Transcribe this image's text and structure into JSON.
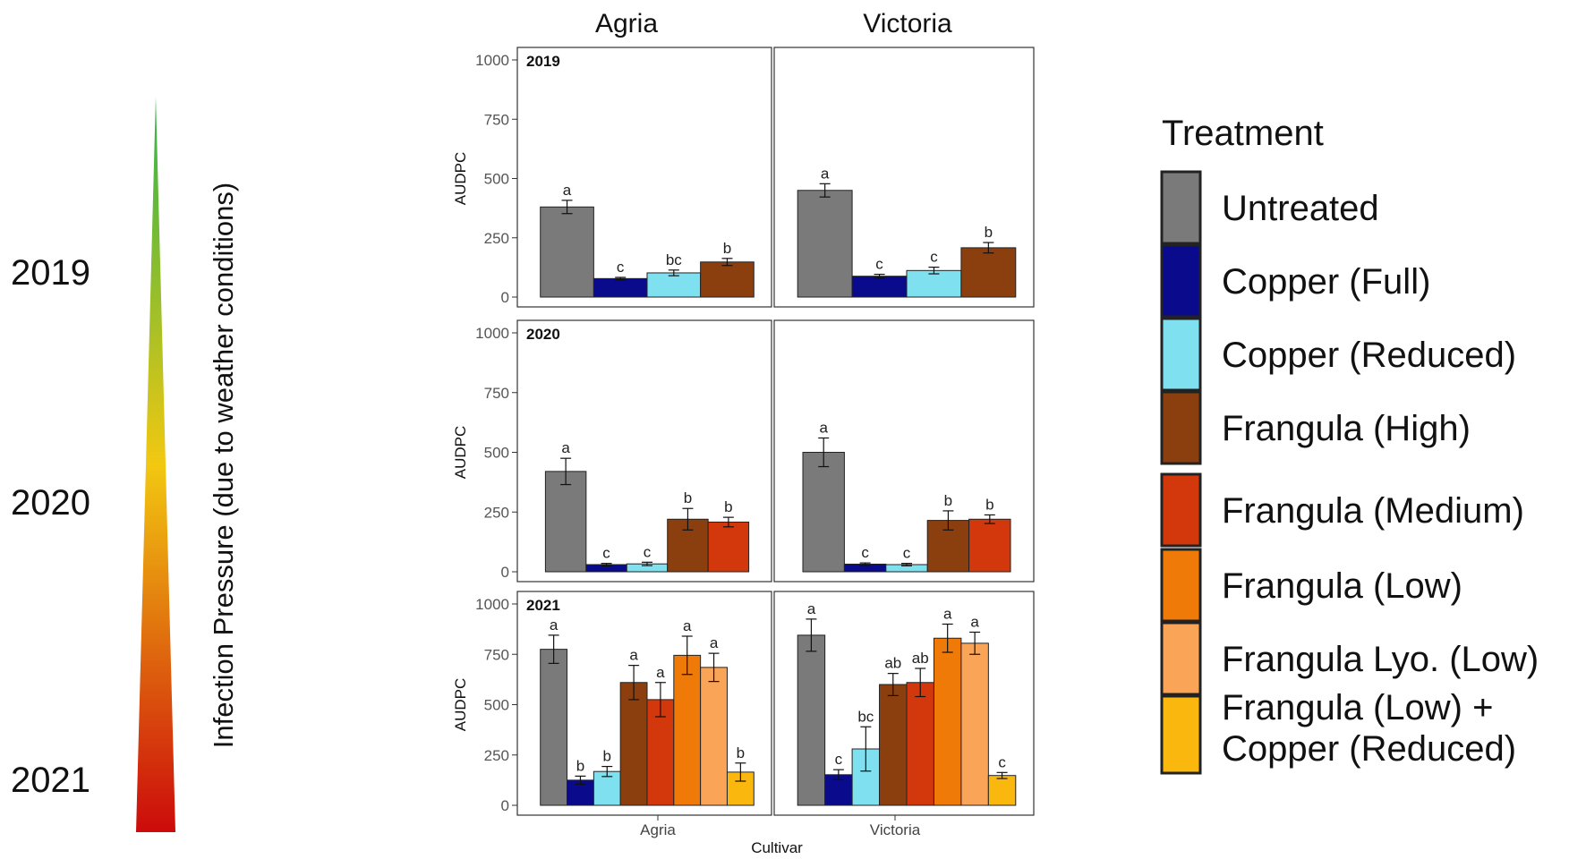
{
  "left_axis": {
    "label": "Infection Pressure (due to weather conditions)",
    "years": [
      "2019",
      "2020",
      "2021"
    ],
    "gradient_colors": [
      "#2db34a",
      "#f2c811",
      "#cc0b0b"
    ]
  },
  "column_titles": [
    "Agria",
    "Victoria"
  ],
  "x_axis_label": "Cultivar",
  "x_tick_labels": [
    "Agria",
    "Victoria"
  ],
  "y_axis_label": "AUDPC",
  "y_ticks": [
    "0",
    "250",
    "500",
    "750",
    "1000"
  ],
  "legend": {
    "title": "Treatment",
    "items": [
      {
        "label": "Untreated",
        "color": "#7a7a7a"
      },
      {
        "label": "Copper (Full)",
        "color": "#0a0a8c"
      },
      {
        "label": "Copper (Reduced)",
        "color": "#7fe1ef"
      },
      {
        "label": "Frangula (High)",
        "color": "#8b3f0f"
      },
      {
        "label": "Frangula (Medium)",
        "color": "#d3380c"
      },
      {
        "label": "Frangula (Low)",
        "color": "#ef7a07"
      },
      {
        "label": "Frangula Lyo. (Low)",
        "color": "#faa457"
      },
      {
        "label": "Frangula (Low) +\nCopper (Reduced)",
        "color": "#fab80f"
      }
    ]
  },
  "chart_data": {
    "type": "bar",
    "xlabel": "Cultivar",
    "ylabel": "AUDPC",
    "ylim": [
      0,
      1000
    ],
    "grid": false,
    "legend_placement": "right",
    "panels": [
      {
        "year": "2019",
        "cultivar": "Agria",
        "bars": [
          {
            "treatment": "Untreated",
            "value": 380,
            "err": 28,
            "letter": "a"
          },
          {
            "treatment": "Copper (Full)",
            "value": 78,
            "err": 5,
            "letter": "c"
          },
          {
            "treatment": "Copper (Reduced)",
            "value": 102,
            "err": 12,
            "letter": "bc"
          },
          {
            "treatment": "Frangula (High)",
            "value": 148,
            "err": 15,
            "letter": "b"
          }
        ]
      },
      {
        "year": "2019",
        "cultivar": "Victoria",
        "bars": [
          {
            "treatment": "Untreated",
            "value": 450,
            "err": 28,
            "letter": "a"
          },
          {
            "treatment": "Copper (Full)",
            "value": 88,
            "err": 8,
            "letter": "c"
          },
          {
            "treatment": "Copper (Reduced)",
            "value": 112,
            "err": 14,
            "letter": "c"
          },
          {
            "treatment": "Frangula (High)",
            "value": 208,
            "err": 22,
            "letter": "b"
          }
        ]
      },
      {
        "year": "2020",
        "cultivar": "Agria",
        "bars": [
          {
            "treatment": "Untreated",
            "value": 420,
            "err": 55,
            "letter": "a"
          },
          {
            "treatment": "Copper (Full)",
            "value": 30,
            "err": 5,
            "letter": "c"
          },
          {
            "treatment": "Copper (Reduced)",
            "value": 33,
            "err": 7,
            "letter": "c"
          },
          {
            "treatment": "Frangula (High)",
            "value": 220,
            "err": 45,
            "letter": "b"
          },
          {
            "treatment": "Frangula (Medium)",
            "value": 208,
            "err": 20,
            "letter": "b"
          }
        ]
      },
      {
        "year": "2020",
        "cultivar": "Victoria",
        "bars": [
          {
            "treatment": "Untreated",
            "value": 500,
            "err": 60,
            "letter": "a"
          },
          {
            "treatment": "Copper (Full)",
            "value": 32,
            "err": 5,
            "letter": "c"
          },
          {
            "treatment": "Copper (Reduced)",
            "value": 30,
            "err": 5,
            "letter": "c"
          },
          {
            "treatment": "Frangula (High)",
            "value": 215,
            "err": 40,
            "letter": "b"
          },
          {
            "treatment": "Frangula (Medium)",
            "value": 220,
            "err": 18,
            "letter": "b"
          }
        ]
      },
      {
        "year": "2021",
        "cultivar": "Agria",
        "bars": [
          {
            "treatment": "Untreated",
            "value": 775,
            "err": 70,
            "letter": "a"
          },
          {
            "treatment": "Copper (Full)",
            "value": 125,
            "err": 20,
            "letter": "b"
          },
          {
            "treatment": "Copper (Reduced)",
            "value": 168,
            "err": 25,
            "letter": "b"
          },
          {
            "treatment": "Frangula (High)",
            "value": 610,
            "err": 85,
            "letter": "a"
          },
          {
            "treatment": "Frangula (Medium)",
            "value": 525,
            "err": 85,
            "letter": "a"
          },
          {
            "treatment": "Frangula (Low)",
            "value": 745,
            "err": 95,
            "letter": "a"
          },
          {
            "treatment": "Frangula Lyo. (Low)",
            "value": 685,
            "err": 70,
            "letter": "a"
          },
          {
            "treatment": "Frangula (Low) + Copper (Reduced)",
            "value": 165,
            "err": 45,
            "letter": "b"
          }
        ]
      },
      {
        "year": "2021",
        "cultivar": "Victoria",
        "bars": [
          {
            "treatment": "Untreated",
            "value": 845,
            "err": 80,
            "letter": "a"
          },
          {
            "treatment": "Copper (Full)",
            "value": 152,
            "err": 25,
            "letter": "c"
          },
          {
            "treatment": "Copper (Reduced)",
            "value": 280,
            "err": 110,
            "letter": "bc"
          },
          {
            "treatment": "Frangula (High)",
            "value": 600,
            "err": 55,
            "letter": "ab"
          },
          {
            "treatment": "Frangula (Medium)",
            "value": 610,
            "err": 70,
            "letter": "ab"
          },
          {
            "treatment": "Frangula (Low)",
            "value": 830,
            "err": 70,
            "letter": "a"
          },
          {
            "treatment": "Frangula Lyo. (Low)",
            "value": 805,
            "err": 55,
            "letter": "a"
          },
          {
            "treatment": "Frangula (Low) + Copper (Reduced)",
            "value": 148,
            "err": 15,
            "letter": "c"
          }
        ]
      }
    ]
  }
}
